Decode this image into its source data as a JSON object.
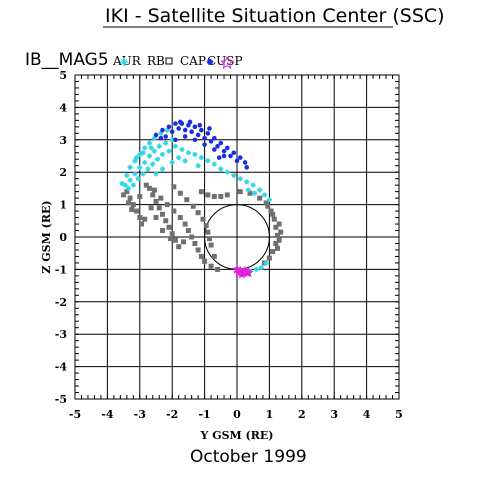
{
  "header": {
    "title": "IKI - Satellite Situation Center (SSC)",
    "satellite": "IB__MAG5"
  },
  "footer": {
    "date": "October   1999"
  },
  "colors": {
    "aur": "#33d6e6",
    "rb": "#707070",
    "cusp": "#1a2ee0",
    "cap": "#e020e0",
    "axis": "#000000"
  },
  "chart_data": {
    "type": "scatter",
    "title": "",
    "xlabel": "Y GSM (RE)",
    "ylabel": "Z GSM (RE)",
    "xlim": [
      -5,
      5
    ],
    "ylim": [
      -5,
      5
    ],
    "xticks": [
      "-5",
      "-4",
      "-3",
      "-2",
      "-1",
      "0",
      "1",
      "2",
      "3",
      "4",
      "5"
    ],
    "yticks": [
      "-5",
      "-4",
      "-3",
      "-2",
      "-1",
      "0",
      "1",
      "2",
      "3",
      "4",
      "5"
    ],
    "grid": true,
    "legend": [
      {
        "label": "AUR",
        "symbol": "cross",
        "color_key": "aur"
      },
      {
        "label": "RB",
        "symbol": "square",
        "color_key": "rb"
      },
      {
        "label": "CAP",
        "symbol": "dot",
        "color_key": "cusp"
      },
      {
        "label": "CUSP",
        "symbol": "star",
        "color_key": "cap"
      }
    ],
    "earth": {
      "center": [
        0,
        0
      ],
      "radius": 1
    },
    "series": [
      {
        "name": "AUR",
        "marker": "cross",
        "points": [
          [
            -3.55,
            1.65
          ],
          [
            -3.4,
            1.9
          ],
          [
            -3.3,
            2.15
          ],
          [
            -3.15,
            2.35
          ],
          [
            -3.0,
            2.55
          ],
          [
            -2.85,
            2.75
          ],
          [
            -2.7,
            2.9
          ],
          [
            -2.55,
            3.05
          ],
          [
            -2.35,
            3.2
          ],
          [
            -2.15,
            3.3
          ],
          [
            -3.45,
            1.6
          ],
          [
            -3.3,
            1.75
          ],
          [
            -3.15,
            1.95
          ],
          [
            -3.0,
            2.15
          ],
          [
            -2.85,
            2.3
          ],
          [
            -2.7,
            2.5
          ],
          [
            -2.55,
            2.65
          ],
          [
            -2.4,
            2.8
          ],
          [
            -2.2,
            2.9
          ],
          [
            -2.0,
            3.0
          ],
          [
            -3.35,
            1.5
          ],
          [
            -3.2,
            1.6
          ],
          [
            -3.05,
            1.8
          ],
          [
            -2.9,
            1.95
          ],
          [
            -2.75,
            2.1
          ],
          [
            -2.6,
            2.25
          ],
          [
            -2.45,
            2.4
          ],
          [
            -2.3,
            2.55
          ],
          [
            -2.1,
            2.65
          ],
          [
            -1.9,
            2.8
          ],
          [
            -1.7,
            2.7
          ],
          [
            -1.5,
            2.6
          ],
          [
            -1.3,
            2.55
          ],
          [
            -1.1,
            2.45
          ],
          [
            -0.9,
            2.35
          ],
          [
            -0.7,
            2.25
          ],
          [
            -0.5,
            2.1
          ],
          [
            -0.3,
            2.0
          ],
          [
            -0.1,
            1.9
          ],
          [
            0.1,
            1.8
          ],
          [
            0.3,
            1.7
          ],
          [
            0.5,
            1.6
          ],
          [
            0.7,
            1.45
          ],
          [
            0.85,
            1.3
          ],
          [
            -2.5,
            1.95
          ],
          [
            -2.3,
            2.1
          ],
          [
            -2.0,
            2.3
          ],
          [
            -1.8,
            2.45
          ],
          [
            -1.6,
            2.35
          ],
          [
            -1.2,
            2.2
          ],
          [
            -3.1,
            2.45
          ],
          [
            -2.9,
            2.6
          ],
          [
            -2.65,
            2.75
          ],
          [
            0.55,
            1.35
          ],
          [
            0.35,
            1.45
          ],
          [
            0.9,
            -0.8
          ],
          [
            0.6,
            -1.0
          ],
          [
            0.4,
            -1.05
          ],
          [
            0.75,
            -0.95
          ],
          [
            1.0,
            1.15
          ]
        ]
      },
      {
        "name": "RB",
        "marker": "square",
        "points": [
          [
            -3.4,
            1.4
          ],
          [
            -3.3,
            1.2
          ],
          [
            -3.2,
            1.0
          ],
          [
            -3.1,
            0.8
          ],
          [
            -3.0,
            0.6
          ],
          [
            -2.95,
            0.4
          ],
          [
            -3.5,
            1.3
          ],
          [
            -3.35,
            1.05
          ],
          [
            -3.25,
            0.85
          ],
          [
            -2.85,
            0.55
          ],
          [
            -2.7,
            1.5
          ],
          [
            -2.6,
            1.3
          ],
          [
            -2.5,
            1.1
          ],
          [
            -2.4,
            0.9
          ],
          [
            -2.3,
            0.7
          ],
          [
            -2.2,
            0.5
          ],
          [
            -2.1,
            0.3
          ],
          [
            -2.0,
            0.1
          ],
          [
            -1.9,
            -0.1
          ],
          [
            -1.8,
            -0.3
          ],
          [
            -2.8,
            1.6
          ],
          [
            -2.55,
            1.45
          ],
          [
            -2.35,
            1.2
          ],
          [
            -2.15,
            1.0
          ],
          [
            -1.95,
            0.8
          ],
          [
            -1.75,
            0.6
          ],
          [
            -1.6,
            0.4
          ],
          [
            -1.5,
            0.2
          ],
          [
            -1.4,
            0.0
          ],
          [
            -1.3,
            -0.2
          ],
          [
            -1.2,
            -0.4
          ],
          [
            -1.1,
            -0.6
          ],
          [
            -1.0,
            -0.75
          ],
          [
            -0.8,
            -0.9
          ],
          [
            -0.6,
            -1.0
          ],
          [
            -1.95,
            1.55
          ],
          [
            -1.75,
            1.35
          ],
          [
            -1.55,
            1.15
          ],
          [
            -1.35,
            0.95
          ],
          [
            -1.2,
            0.75
          ],
          [
            -1.05,
            0.55
          ],
          [
            -0.95,
            0.35
          ],
          [
            -0.9,
            0.15
          ],
          [
            -0.85,
            -0.05
          ],
          [
            -0.8,
            -0.25
          ],
          [
            -1.1,
            1.4
          ],
          [
            -0.9,
            1.3
          ],
          [
            -0.7,
            1.25
          ],
          [
            -0.5,
            1.25
          ],
          [
            -0.3,
            1.3
          ],
          [
            0.1,
            1.4
          ],
          [
            0.4,
            1.35
          ],
          [
            0.7,
            1.2
          ],
          [
            0.9,
            1.05
          ],
          [
            1.05,
            0.8
          ],
          [
            1.15,
            0.55
          ],
          [
            1.2,
            0.3
          ],
          [
            1.25,
            0.05
          ],
          [
            1.2,
            -0.2
          ],
          [
            1.1,
            -0.45
          ],
          [
            1.0,
            -0.65
          ],
          [
            0.85,
            -0.8
          ],
          [
            1.3,
            0.4
          ],
          [
            1.35,
            0.15
          ],
          [
            1.3,
            -0.1
          ],
          [
            1.25,
            -0.35
          ],
          [
            0.95,
            0.95
          ],
          [
            1.1,
            0.7
          ],
          [
            -2.3,
            0.2
          ],
          [
            -2.5,
            0.6
          ],
          [
            -2.65,
            0.9
          ],
          [
            -3.0,
            1.25
          ],
          [
            -2.05,
            -0.05
          ],
          [
            -1.65,
            -0.15
          ],
          [
            -0.7,
            -0.6
          ]
        ]
      },
      {
        "name": "CAP",
        "marker": "dot",
        "points": [
          [
            -2.5,
            3.15
          ],
          [
            -2.3,
            3.3
          ],
          [
            -2.1,
            3.4
          ],
          [
            -1.9,
            3.5
          ],
          [
            -1.7,
            3.5
          ],
          [
            -1.5,
            3.45
          ],
          [
            -1.3,
            3.4
          ],
          [
            -1.1,
            3.3
          ],
          [
            -0.9,
            3.2
          ],
          [
            -0.7,
            3.05
          ],
          [
            -0.5,
            2.9
          ],
          [
            -0.3,
            2.75
          ],
          [
            -0.1,
            2.6
          ],
          [
            0.1,
            2.45
          ],
          [
            0.25,
            2.3
          ],
          [
            -2.2,
            3.1
          ],
          [
            -2.0,
            3.25
          ],
          [
            -1.8,
            3.35
          ],
          [
            -1.6,
            3.3
          ],
          [
            -1.4,
            3.25
          ],
          [
            -1.2,
            3.15
          ],
          [
            -1.0,
            3.05
          ],
          [
            -0.8,
            2.95
          ],
          [
            -0.6,
            2.8
          ],
          [
            -0.4,
            2.65
          ],
          [
            -0.2,
            2.5
          ],
          [
            0.0,
            2.35
          ],
          [
            -1.9,
            3.0
          ],
          [
            -1.6,
            3.1
          ],
          [
            -1.3,
            3.0
          ],
          [
            -1.0,
            2.85
          ],
          [
            -0.7,
            2.7
          ],
          [
            -0.4,
            2.5
          ],
          [
            -1.75,
            3.55
          ],
          [
            -1.45,
            3.55
          ],
          [
            -1.15,
            3.45
          ],
          [
            -0.85,
            3.35
          ],
          [
            0.3,
            2.15
          ],
          [
            -2.35,
            3.05
          ],
          [
            -0.55,
            2.45
          ]
        ]
      },
      {
        "name": "CUSP",
        "marker": "star",
        "points": [
          [
            0.0,
            -1.0
          ],
          [
            0.1,
            -1.05
          ],
          [
            0.2,
            -1.1
          ],
          [
            0.3,
            -1.1
          ],
          [
            0.15,
            -1.15
          ],
          [
            0.25,
            -1.05
          ],
          [
            0.35,
            -1.1
          ],
          [
            0.05,
            -1.1
          ]
        ]
      }
    ]
  }
}
